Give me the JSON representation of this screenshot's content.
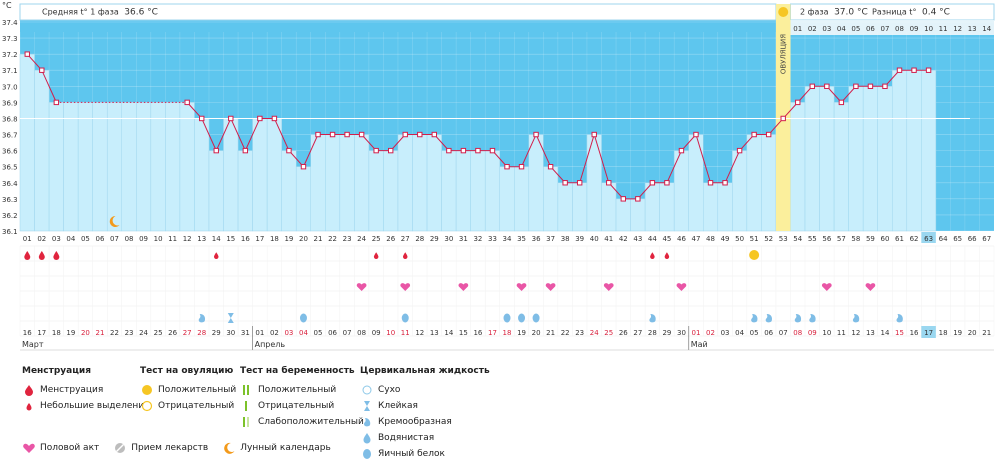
{
  "header": {
    "unit": "°C",
    "phase1_label": "Средняя t° 1 фаза",
    "phase1_value": "36.6 °C",
    "phase2_label": "2 фаза",
    "phase2_value": "37.0 °C",
    "diff_label": "Разница t°",
    "diff_value": "0.4 °C",
    "ovulation_label": "ОВУЛЯЦИЯ"
  },
  "colors": {
    "phase1_bg": "#5ec6ee",
    "phase2_bg": "#d8eef7",
    "bar": "#c8eefc",
    "line": "#d21e4b",
    "ovulation": "#fbef9c",
    "threshold": "#ffffff",
    "today": "#9ad7f0"
  },
  "chart_data": {
    "type": "line",
    "title": "",
    "xlabel": "",
    "ylabel": "°C",
    "ylim": [
      36.1,
      37.4
    ],
    "yticks": [
      37.4,
      37.3,
      37.2,
      37.1,
      37.0,
      36.9,
      36.8,
      36.7,
      36.6,
      36.5,
      36.4,
      36.3,
      36.2,
      36.1
    ],
    "cycle_days": 67,
    "ovulation_day": 53,
    "phase1_mean": 36.6,
    "phase2_mean": 37.0,
    "threshold_line": 36.8,
    "measured_days": [
      1,
      2,
      3,
      12,
      13,
      14,
      15,
      16,
      17,
      18,
      19,
      20,
      21,
      22,
      23,
      24,
      25,
      26,
      27,
      28,
      29,
      30,
      31,
      32,
      33,
      34,
      35,
      36,
      37,
      38,
      39,
      40,
      41,
      42,
      43,
      44,
      45,
      46,
      47,
      48,
      49,
      50,
      51,
      52,
      53,
      54,
      55,
      56,
      57,
      58,
      59,
      60,
      61,
      62,
      63
    ],
    "temperatures": [
      37.2,
      37.1,
      36.9,
      36.9,
      36.8,
      36.6,
      36.8,
      36.6,
      36.8,
      36.8,
      36.6,
      36.5,
      36.7,
      36.7,
      36.7,
      36.7,
      36.6,
      36.6,
      36.7,
      36.7,
      36.7,
      36.6,
      36.6,
      36.6,
      36.6,
      36.5,
      36.5,
      36.7,
      36.5,
      36.4,
      36.4,
      36.7,
      36.4,
      36.3,
      36.3,
      36.4,
      36.4,
      36.6,
      36.7,
      36.4,
      36.4,
      36.6,
      36.7,
      36.7,
      36.8,
      36.9,
      37.0,
      37.0,
      36.9,
      37.0,
      37.0,
      37.0,
      37.1,
      37.1,
      37.1
    ],
    "interpolated_gap": [
      3,
      12
    ],
    "phase2_day_labels": [
      "01",
      "02",
      "03",
      "04",
      "05",
      "06",
      "07",
      "08",
      "09",
      "10",
      "11",
      "12",
      "13",
      "14"
    ],
    "cycle_day_labels": [
      "01",
      "02",
      "03",
      "04",
      "05",
      "06",
      "07",
      "08",
      "09",
      "10",
      "11",
      "12",
      "13",
      "14",
      "15",
      "16",
      "17",
      "18",
      "19",
      "20",
      "21",
      "22",
      "23",
      "24",
      "25",
      "26",
      "27",
      "28",
      "29",
      "30",
      "31",
      "32",
      "33",
      "34",
      "35",
      "36",
      "37",
      "38",
      "39",
      "40",
      "41",
      "42",
      "43",
      "44",
      "45",
      "46",
      "47",
      "48",
      "49",
      "50",
      "51",
      "52",
      "53",
      "54",
      "55",
      "56",
      "57",
      "58",
      "59",
      "60",
      "61",
      "62",
      "63",
      "64",
      "65",
      "66",
      "67"
    ],
    "current_day": 63,
    "calendar_dates": [
      "16",
      "17",
      "18",
      "19",
      "20",
      "21",
      "22",
      "23",
      "24",
      "25",
      "26",
      "27",
      "28",
      "29",
      "30",
      "31",
      "01",
      "02",
      "03",
      "04",
      "05",
      "06",
      "07",
      "08",
      "09",
      "10",
      "11",
      "12",
      "13",
      "14",
      "15",
      "16",
      "17",
      "18",
      "19",
      "20",
      "21",
      "22",
      "23",
      "24",
      "25",
      "26",
      "27",
      "28",
      "29",
      "30",
      "01",
      "02",
      "03",
      "04",
      "05",
      "06",
      "07",
      "08",
      "09",
      "10",
      "11",
      "12",
      "13",
      "14",
      "15",
      "16",
      "17",
      "18",
      "19",
      "20",
      "21"
    ],
    "red_date_days": [
      5,
      6,
      12,
      13,
      19,
      20,
      26,
      27,
      33,
      34,
      40,
      41,
      47,
      48,
      54,
      55,
      61
    ],
    "today_date_day": 63,
    "months": [
      {
        "name": "Март",
        "start_day": 1
      },
      {
        "name": "Апрель",
        "start_day": 17
      },
      {
        "name": "Май",
        "start_day": 47
      }
    ],
    "menstruation_days": [
      1,
      2,
      3
    ],
    "spotting_days": [
      14,
      25,
      27,
      44,
      45
    ],
    "ovulation_test_positive_days": [
      51
    ],
    "intercourse_days": [
      24,
      27,
      31,
      35,
      37,
      41,
      46,
      56,
      59
    ],
    "mucus": [
      {
        "day": 13,
        "type": "creamy"
      },
      {
        "day": 15,
        "type": "sticky"
      },
      {
        "day": 20,
        "type": "watery"
      },
      {
        "day": 27,
        "type": "watery"
      },
      {
        "day": 34,
        "type": "watery"
      },
      {
        "day": 35,
        "type": "watery"
      },
      {
        "day": 36,
        "type": "watery"
      },
      {
        "day": 44,
        "type": "creamy"
      },
      {
        "day": 51,
        "type": "creamy"
      },
      {
        "day": 52,
        "type": "creamy"
      },
      {
        "day": 54,
        "type": "creamy"
      },
      {
        "day": 55,
        "type": "creamy"
      },
      {
        "day": 58,
        "type": "creamy"
      },
      {
        "day": 61,
        "type": "creamy"
      }
    ],
    "lunar_day": 7
  },
  "legend": {
    "menstruation": {
      "title": "Менструация",
      "items": [
        "Менструация",
        "Небольшие выделения"
      ]
    },
    "ovulation_test": {
      "title": "Тест на овуляцию",
      "items": [
        "Положительный",
        "Отрицательный"
      ]
    },
    "pregnancy_test": {
      "title": "Тест на беременность",
      "items": [
        "Положительный",
        "Отрицательный",
        "Слабоположительный"
      ]
    },
    "cervical_fluid": {
      "title": "Цервикальная жидкость",
      "items": [
        "Сухо",
        "Клейкая",
        "Кремообразная",
        "Водянистая",
        "Яичный белок"
      ]
    },
    "bottom": [
      "Половой акт",
      "Прием лекарств",
      "Лунный календарь"
    ]
  }
}
